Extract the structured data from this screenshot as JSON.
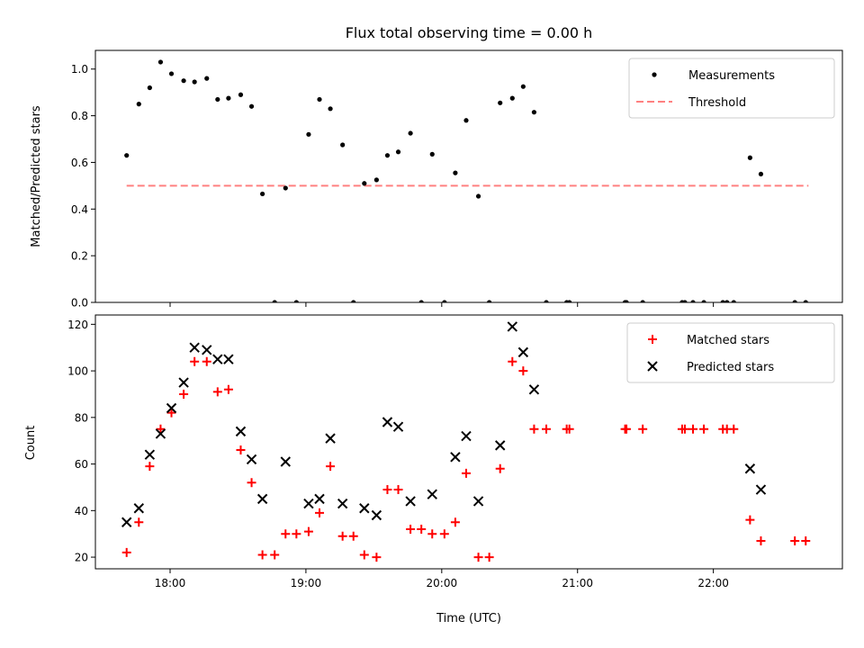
{
  "chart_data": [
    {
      "type": "scatter",
      "title": "Flux total observing time = 0.00 h",
      "xlabel": "",
      "ylabel": "Matched/Predicted stars",
      "ylim": [
        0.0,
        1.08
      ],
      "yticks": [
        0.0,
        0.2,
        0.4,
        0.6,
        0.8,
        1.0
      ],
      "ytick_labels": [
        "0.0",
        "0.2",
        "0.4",
        "0.6",
        "0.8",
        "1.0"
      ],
      "xlim_hours": [
        17.45,
        22.95
      ],
      "xticks_hours": [
        18,
        19,
        20,
        21,
        22
      ],
      "show_xtick_labels": false,
      "legend": {
        "location": "top-right"
      },
      "threshold": {
        "name": "Threshold",
        "value": 0.5,
        "x_range_hours": [
          17.68,
          22.7
        ],
        "color": "#ff8080"
      },
      "series": [
        {
          "name": "Measurements",
          "color": "#000000",
          "marker": "dot",
          "x_hours": [
            17.68,
            17.77,
            17.85,
            17.93,
            18.01,
            18.1,
            18.18,
            18.27,
            18.35,
            18.43,
            18.52,
            18.6,
            18.68,
            18.77,
            18.85,
            18.93,
            19.02,
            19.1,
            19.18,
            19.27,
            19.35,
            19.43,
            19.52,
            19.6,
            19.68,
            19.77,
            19.85,
            19.93,
            20.02,
            20.1,
            20.18,
            20.27,
            20.35,
            20.43,
            20.52,
            20.6,
            20.68,
            20.77,
            20.92,
            20.94,
            21.35,
            21.36,
            21.48,
            21.77,
            21.79,
            21.85,
            21.93,
            22.07,
            22.1,
            22.15,
            22.27,
            22.35,
            22.6,
            22.68
          ],
          "values": [
            0.63,
            0.85,
            0.92,
            1.03,
            0.98,
            0.95,
            0.945,
            0.96,
            0.87,
            0.875,
            0.89,
            0.84,
            0.465,
            0.0,
            0.49,
            0.0,
            0.72,
            0.87,
            0.83,
            0.675,
            0.0,
            0.51,
            0.525,
            0.63,
            0.645,
            0.725,
            0.0,
            0.635,
            0.0,
            0.555,
            0.78,
            0.455,
            0.0,
            0.855,
            0.875,
            0.925,
            0.815,
            0.0,
            0.0,
            0.0,
            0.0,
            0.0,
            0.0,
            0.0,
            0.0,
            0.0,
            0.0,
            0.0,
            0.0,
            0.0,
            0.62,
            0.55,
            0.0,
            0.0
          ]
        }
      ]
    },
    {
      "type": "scatter",
      "title": "",
      "xlabel": "Time (UTC)",
      "ylabel": "Count",
      "ylim": [
        15,
        124
      ],
      "yticks": [
        20,
        40,
        60,
        80,
        100,
        120
      ],
      "ytick_labels": [
        "20",
        "40",
        "60",
        "80",
        "100",
        "120"
      ],
      "xlim_hours": [
        17.45,
        22.95
      ],
      "xticks_hours": [
        18,
        19,
        20,
        21,
        22
      ],
      "xtick_labels": [
        "18:00",
        "19:00",
        "20:00",
        "21:00",
        "22:00"
      ],
      "legend": {
        "location": "top-right"
      },
      "series": [
        {
          "name": "Matched stars",
          "color": "#ff0000",
          "marker": "plus",
          "x_hours": [
            17.68,
            17.77,
            17.85,
            17.93,
            18.01,
            18.1,
            18.18,
            18.27,
            18.35,
            18.43,
            18.52,
            18.6,
            18.68,
            18.77,
            18.85,
            18.93,
            19.02,
            19.1,
            19.18,
            19.27,
            19.35,
            19.43,
            19.52,
            19.6,
            19.68,
            19.77,
            19.85,
            19.93,
            20.02,
            20.1,
            20.18,
            20.27,
            20.35,
            20.43,
            20.52,
            20.6,
            20.68,
            20.77,
            20.92,
            20.94,
            21.35,
            21.36,
            21.48,
            21.77,
            21.79,
            21.85,
            21.93,
            22.07,
            22.1,
            22.15,
            22.27,
            22.35,
            22.6,
            22.68
          ],
          "values": [
            22,
            35,
            59,
            75,
            82,
            90,
            104,
            104,
            91,
            92,
            66,
            52,
            21,
            21,
            30,
            30,
            31,
            39,
            59,
            29,
            29,
            21,
            20,
            49,
            49,
            32,
            32,
            30,
            30,
            35,
            56,
            20,
            20,
            58,
            104,
            100,
            75,
            75,
            75,
            75,
            75,
            75,
            75,
            75,
            75,
            75,
            75,
            75,
            75,
            75,
            36,
            27,
            27,
            27
          ]
        },
        {
          "name": "Predicted stars",
          "color": "#000000",
          "marker": "x",
          "x_hours": [
            17.68,
            17.77,
            17.85,
            17.93,
            18.01,
            18.1,
            18.18,
            18.27,
            18.35,
            18.43,
            18.52,
            18.6,
            18.68,
            18.85,
            19.02,
            19.1,
            19.18,
            19.27,
            19.43,
            19.52,
            19.6,
            19.68,
            19.77,
            19.93,
            20.1,
            20.18,
            20.27,
            20.43,
            20.52,
            20.6,
            20.68,
            22.27,
            22.35
          ],
          "values": [
            35,
            41,
            64,
            73,
            84,
            95,
            110,
            109,
            105,
            105,
            74,
            62,
            45,
            61,
            43,
            45,
            71,
            43,
            41,
            38,
            78,
            76,
            44,
            47,
            63,
            72,
            44,
            68,
            119,
            108,
            92,
            58,
            49
          ]
        }
      ]
    }
  ]
}
